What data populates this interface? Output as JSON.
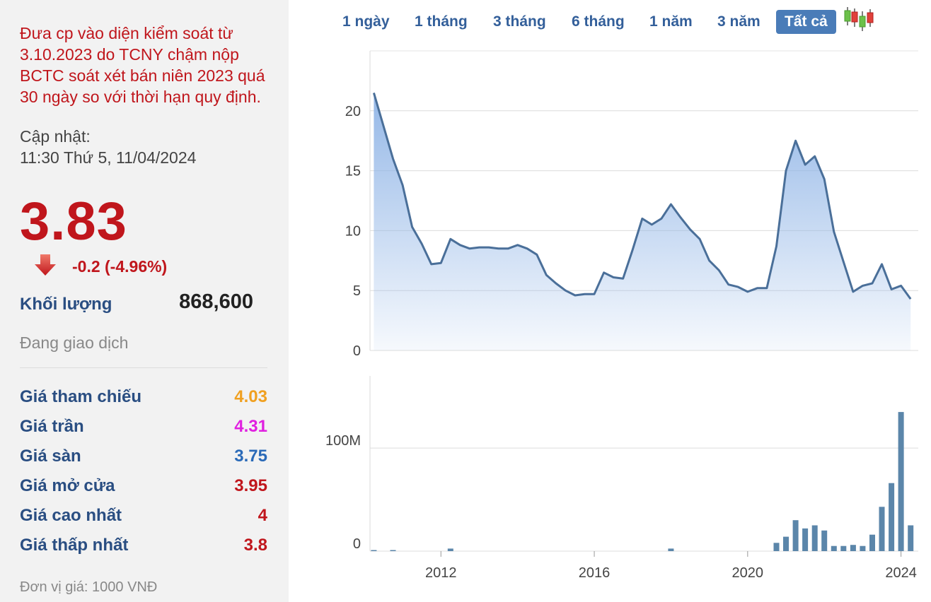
{
  "notice": "Đưa cp vào diện kiểm soát từ 3.10.2023 do TCNY chậm nộp BCTC soát xét bán niên 2023 quá 30 ngày so với thời hạn quy định.",
  "update_label": "Cập nhật:",
  "update_time": "11:30 Thứ 5, 11/04/2024",
  "price": "3.83",
  "change": "-0.2 (-4.96%)",
  "volume_label": "Khối lượng",
  "volume_value": "868,600",
  "status": "Đang giao dịch",
  "stats": [
    {
      "label": "Giá tham chiếu",
      "value": "4.03",
      "color": "#f0a020"
    },
    {
      "label": "Giá trần",
      "value": "4.31",
      "color": "#e020e0"
    },
    {
      "label": "Giá sàn",
      "value": "3.75",
      "color": "#2a6ab8"
    },
    {
      "label": "Giá mở cửa",
      "value": "3.95",
      "color": "#c0161c"
    },
    {
      "label": "Giá cao nhất",
      "value": "4",
      "color": "#c0161c"
    },
    {
      "label": "Giá thấp nhất",
      "value": "3.8",
      "color": "#c0161c"
    }
  ],
  "unit": "Đơn vị giá: 1000 VNĐ",
  "tabs": [
    "1 ngày",
    "1 tháng",
    "3 tháng",
    "6 tháng",
    "1 năm",
    "3 năm",
    "Tất cả"
  ],
  "active_tab": "Tất cả",
  "colors": {
    "line": "#4a6f99",
    "fill_top": "#8fb4e6",
    "volume_bar": "#5b86aa",
    "red": "#c0161c",
    "blue": "#2a4e82"
  },
  "chart_data": {
    "type": "area",
    "price": {
      "x": [
        2010.25,
        2010.75,
        2011.0,
        2011.25,
        2011.5,
        2011.75,
        2012.0,
        2012.25,
        2012.5,
        2012.75,
        2013.0,
        2013.25,
        2013.5,
        2013.75,
        2014.0,
        2014.25,
        2014.5,
        2014.75,
        2015.0,
        2015.25,
        2015.5,
        2015.75,
        2016.0,
        2016.25,
        2016.5,
        2016.75,
        2017.0,
        2017.25,
        2017.5,
        2017.75,
        2018.0,
        2018.25,
        2018.5,
        2018.75,
        2019.0,
        2019.25,
        2019.5,
        2019.75,
        2020.0,
        2020.25,
        2020.5,
        2020.75,
        2021.0,
        2021.25,
        2021.5,
        2021.75,
        2022.0,
        2022.25,
        2022.5,
        2022.75,
        2023.0,
        2023.25,
        2023.5,
        2023.75,
        2024.0,
        2024.25
      ],
      "y": [
        21.5,
        16.0,
        13.8,
        10.3,
        8.9,
        7.2,
        7.3,
        9.3,
        8.8,
        8.5,
        8.6,
        8.6,
        8.5,
        8.5,
        8.8,
        8.5,
        8.0,
        6.3,
        5.6,
        5.0,
        4.6,
        4.7,
        4.7,
        6.5,
        6.1,
        6.0,
        8.4,
        11.0,
        10.5,
        11.0,
        12.2,
        11.1,
        10.1,
        9.3,
        7.5,
        6.7,
        5.5,
        5.3,
        4.9,
        5.2,
        5.2,
        8.7,
        15.0,
        17.5,
        15.5,
        16.2,
        14.3,
        9.9,
        7.4,
        4.9,
        5.4,
        5.6,
        7.2,
        5.1,
        5.4,
        4.3
      ],
      "ylim": [
        0,
        25
      ],
      "yticks": [
        0,
        5,
        10,
        15,
        20
      ]
    },
    "volume": {
      "x": [
        2010.25,
        2010.75,
        2012.25,
        2018.0,
        2020.75,
        2021.0,
        2021.25,
        2021.5,
        2021.75,
        2022.0,
        2022.25,
        2022.5,
        2022.75,
        2023.0,
        2023.25,
        2023.5,
        2023.75,
        2024.0,
        2024.25
      ],
      "y": [
        1,
        1,
        2.5,
        2.5,
        8,
        14,
        30,
        22,
        25,
        20,
        5,
        5,
        6,
        5,
        16,
        43,
        66,
        135,
        25
      ],
      "ylim": [
        0,
        170
      ],
      "yticks": [
        0,
        100
      ],
      "ytick_labels": [
        "0",
        "100M"
      ]
    },
    "xticks": [
      2012,
      2016,
      2020,
      2024
    ],
    "xlim": [
      2010.15,
      2024.45
    ],
    "grid": true
  }
}
